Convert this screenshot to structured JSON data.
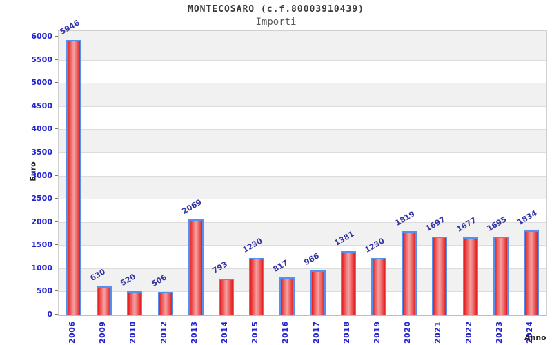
{
  "chart_data": {
    "type": "bar",
    "title": "MONTECOSARO (c.f.80003910439)",
    "subtitle": "Importi",
    "xlabel": "Anno",
    "ylabel": "Euro",
    "categories": [
      "2006",
      "2009",
      "2010",
      "2012",
      "2013",
      "2014",
      "2015",
      "2016",
      "2017",
      "2018",
      "2019",
      "2020",
      "2021",
      "2022",
      "2023",
      "2024"
    ],
    "values": [
      5946,
      630,
      520,
      506,
      2069,
      793,
      1230,
      817,
      966,
      1381,
      1230,
      1819,
      1697,
      1677,
      1695,
      1834
    ],
    "ylim": [
      0,
      6135
    ],
    "ytick_step": 500,
    "ytick_max": 6000,
    "grid": "alternating-horizontal-bands",
    "legend": "none",
    "colors": {
      "bar_edge": "#e41f1f",
      "bar_center": "#f5a2a2",
      "bar_border": "#5590ee",
      "value_label": "#3434a4",
      "axis_tick_label": "#2323cf",
      "band_gray": "#f1f1f1",
      "band_white": "#ffffff",
      "gridline": "#dcdcdc",
      "plot_border": "#cfcfcf",
      "title_color": "#3a3a3a",
      "axis_title_color": "#222222"
    }
  }
}
